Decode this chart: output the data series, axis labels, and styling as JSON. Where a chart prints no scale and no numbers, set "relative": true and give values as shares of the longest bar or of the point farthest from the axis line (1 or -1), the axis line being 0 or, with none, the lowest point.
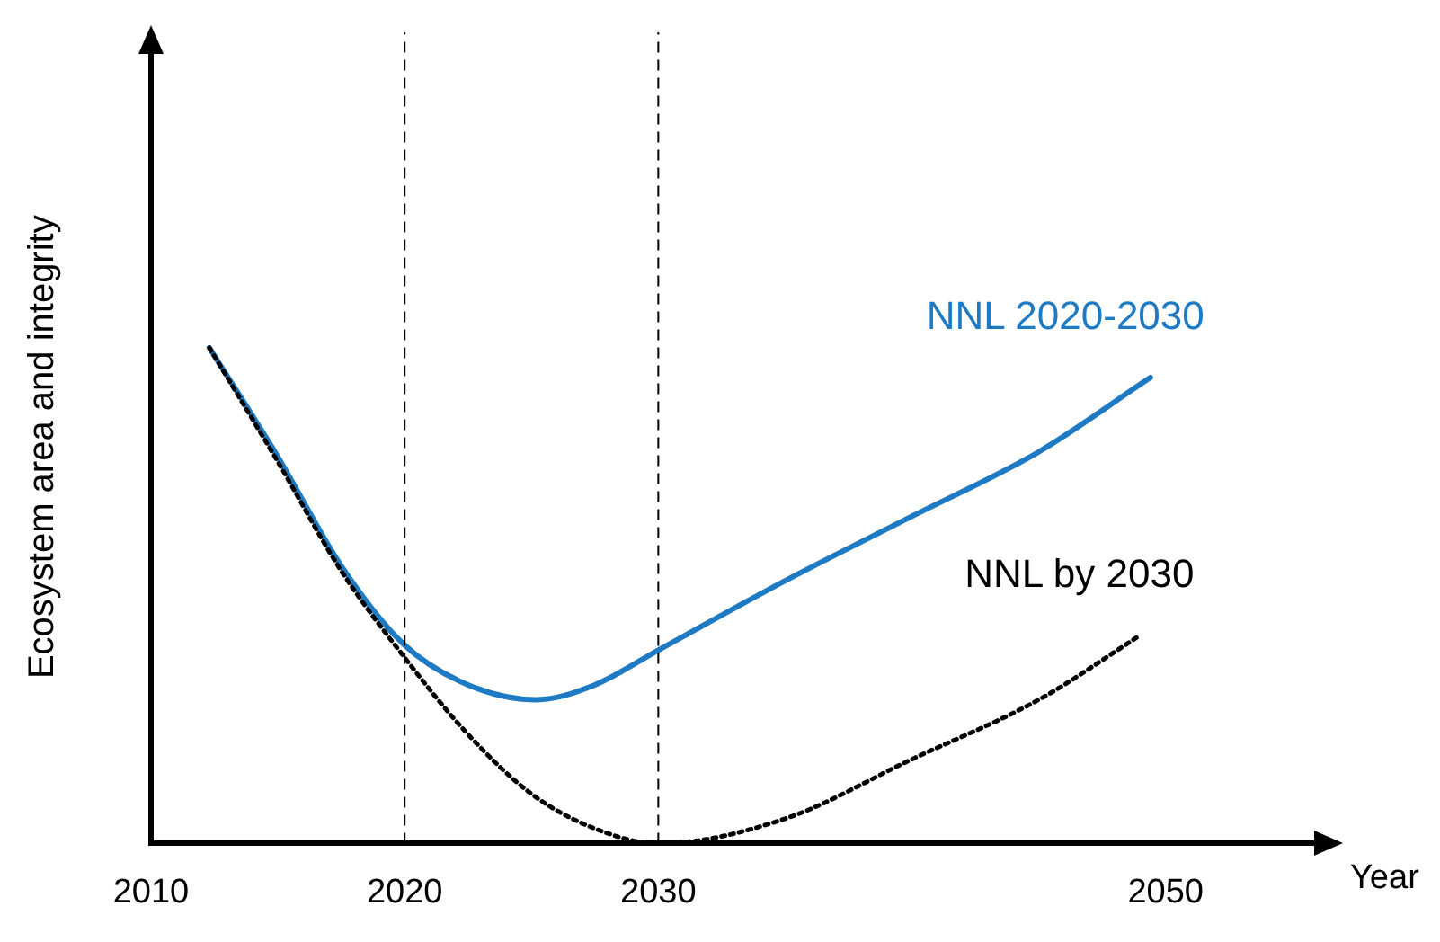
{
  "chart_data": {
    "type": "line",
    "relative": true,
    "xlabel": "Year",
    "ylabel": "Ecosystem area and integrity",
    "xlim": [
      2010,
      2056
    ],
    "xticks": [
      2010,
      2020,
      2030,
      2050
    ],
    "grid": false,
    "legend": false,
    "marker": "none",
    "series": [
      {
        "name": "NNL 2020-2030",
        "color": "#1f7ac4",
        "line_style": "solid",
        "x": [
          2012.3,
          2015,
          2017.5,
          2020,
          2022.5,
          2025.2,
          2027.5,
          2030,
          2035,
          2040,
          2045,
          2049.4
        ],
        "values": [
          1,
          0.78,
          0.56,
          0.4,
          0.32,
          0.29,
          0.32,
          0.39,
          0.53,
          0.66,
          0.79,
          0.94
        ]
      },
      {
        "name": "NNL by 2030",
        "color": "#000000",
        "line_style": "dotted",
        "x": [
          2012.3,
          2015,
          2017.5,
          2020,
          2022.5,
          2025,
          2027.5,
          2030,
          2035,
          2040,
          2045,
          2049
        ],
        "values": [
          1,
          0.77,
          0.55,
          0.375,
          0.22,
          0.1,
          0.03,
          0,
          0.05,
          0.17,
          0.29,
          0.42
        ]
      }
    ],
    "ref_lines": [
      {
        "axis": "x",
        "value": 2020,
        "color": "#000000",
        "line_style": "dashed"
      },
      {
        "axis": "x",
        "value": 2030,
        "color": "#000000",
        "line_style": "dashed"
      }
    ]
  }
}
